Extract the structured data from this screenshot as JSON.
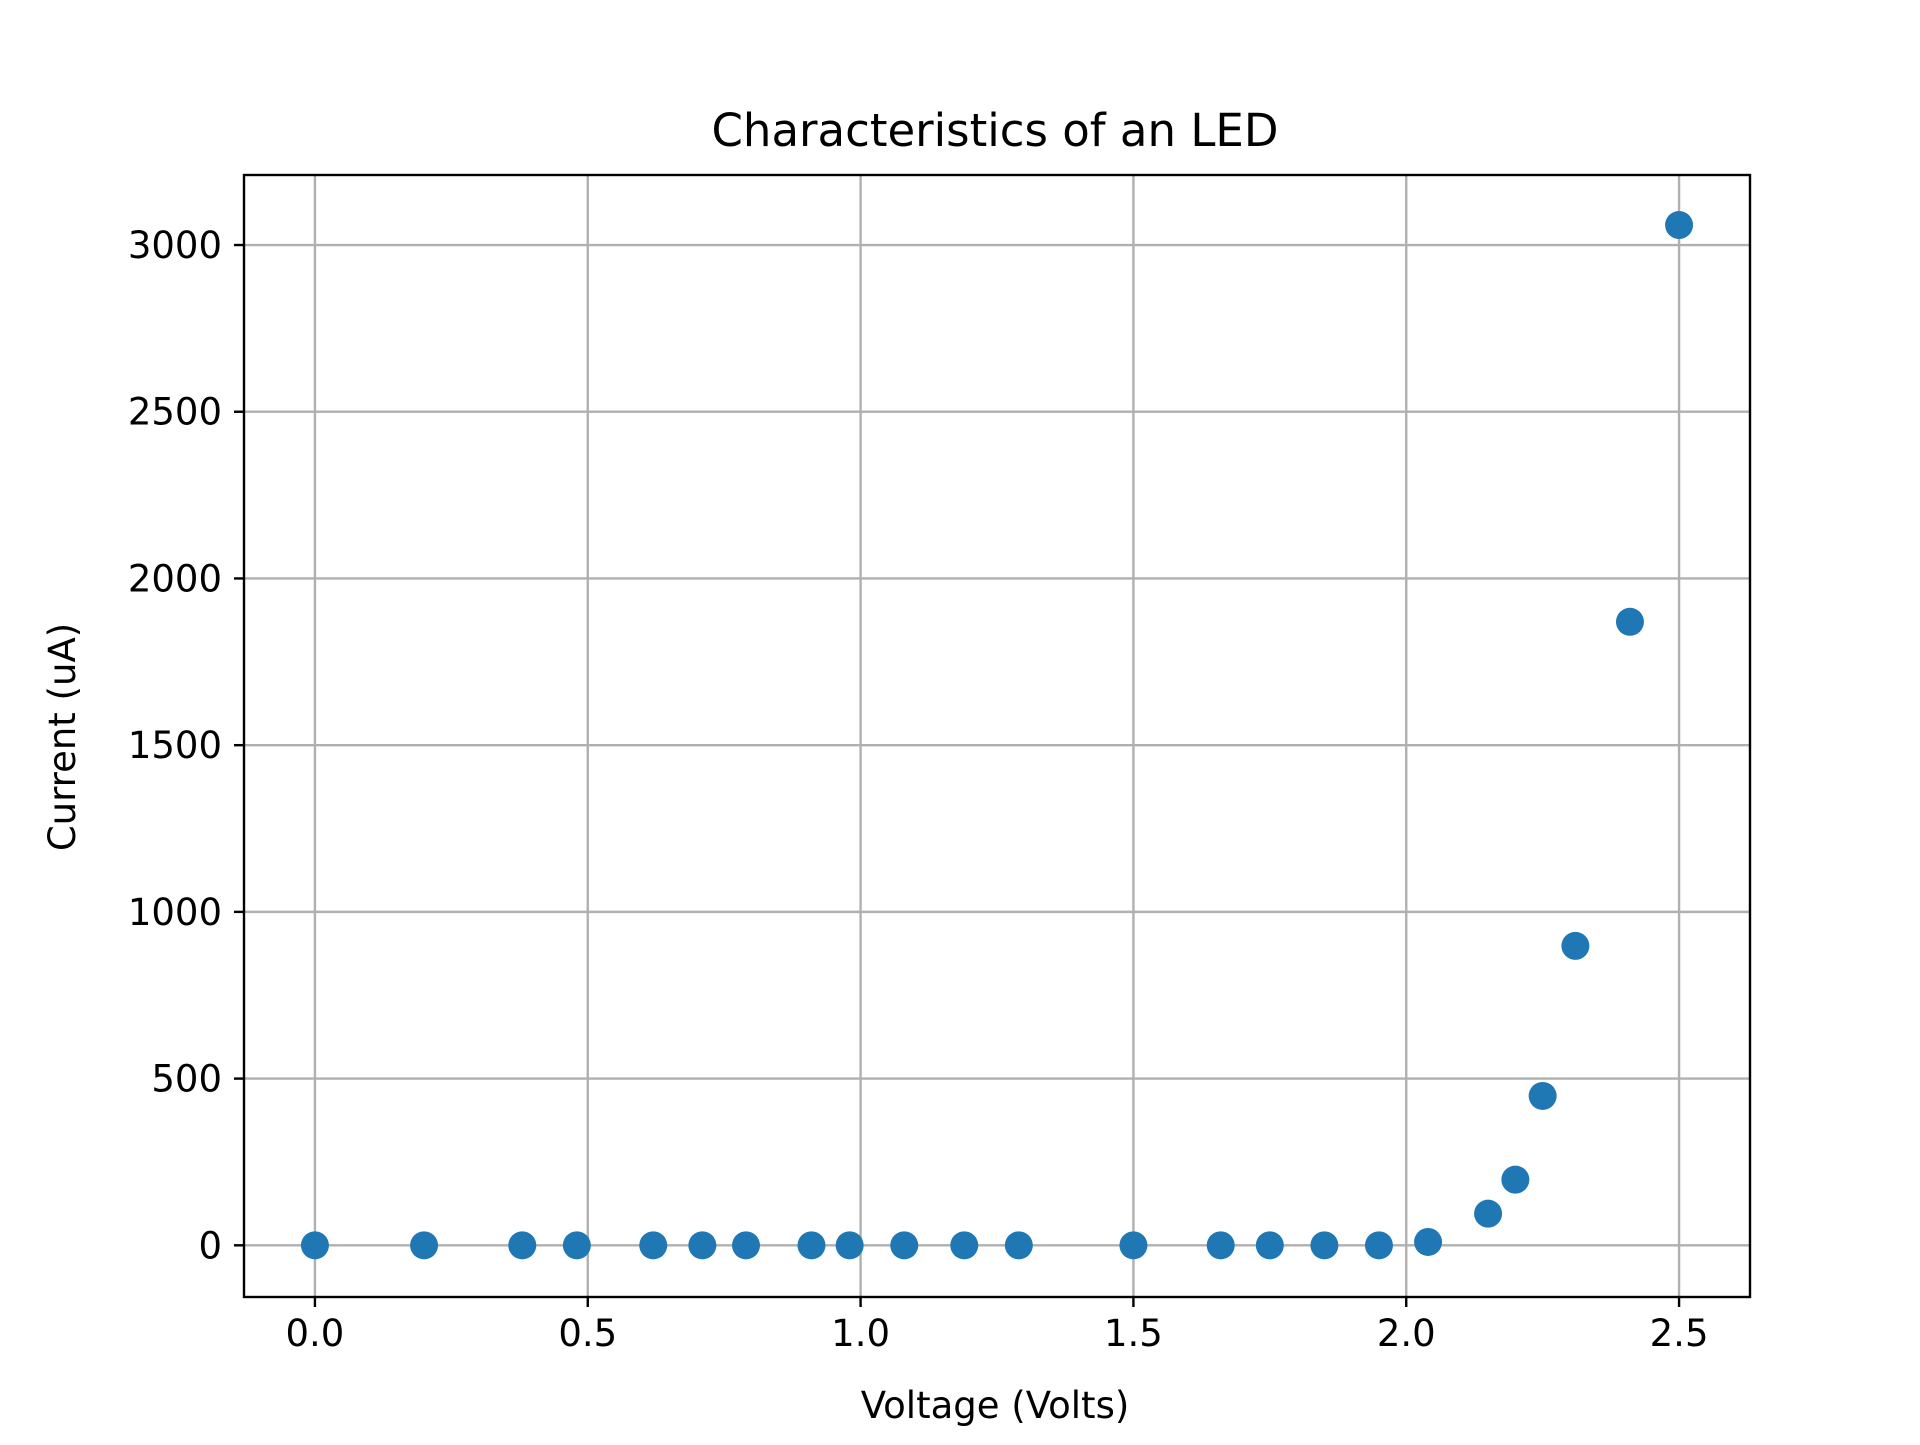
{
  "chart_data": {
    "type": "scatter",
    "title": "Characteristics of an LED",
    "xlabel": "Voltage (Volts)",
    "ylabel": "Current (uA)",
    "xlim": [
      -0.13,
      2.63
    ],
    "ylim": [
      -155,
      3210
    ],
    "xticks": [
      0.0,
      0.5,
      1.0,
      1.5,
      2.0,
      2.5
    ],
    "xtick_labels": [
      "0.0",
      "0.5",
      "1.0",
      "1.5",
      "2.0",
      "2.5"
    ],
    "yticks": [
      0,
      500,
      1000,
      1500,
      2000,
      2500,
      3000
    ],
    "ytick_labels": [
      "0",
      "500",
      "1000",
      "1500",
      "2000",
      "2500",
      "3000"
    ],
    "grid": true,
    "legend": false,
    "series": [
      {
        "color": "#1f77b4",
        "points": [
          {
            "x": 0.0,
            "y": 0
          },
          {
            "x": 0.2,
            "y": 0
          },
          {
            "x": 0.38,
            "y": 0
          },
          {
            "x": 0.48,
            "y": 0
          },
          {
            "x": 0.62,
            "y": 0
          },
          {
            "x": 0.71,
            "y": 0
          },
          {
            "x": 0.79,
            "y": 0
          },
          {
            "x": 0.91,
            "y": 0
          },
          {
            "x": 0.98,
            "y": 0
          },
          {
            "x": 1.08,
            "y": 0
          },
          {
            "x": 1.19,
            "y": 0
          },
          {
            "x": 1.29,
            "y": 0
          },
          {
            "x": 1.5,
            "y": 0
          },
          {
            "x": 1.66,
            "y": 0
          },
          {
            "x": 1.75,
            "y": 0
          },
          {
            "x": 1.85,
            "y": 0
          },
          {
            "x": 1.95,
            "y": 0
          },
          {
            "x": 2.04,
            "y": 10
          },
          {
            "x": 2.15,
            "y": 95
          },
          {
            "x": 2.2,
            "y": 197
          },
          {
            "x": 2.25,
            "y": 448
          },
          {
            "x": 2.31,
            "y": 898
          },
          {
            "x": 2.41,
            "y": 1870
          },
          {
            "x": 2.5,
            "y": 3060
          }
        ]
      }
    ]
  }
}
